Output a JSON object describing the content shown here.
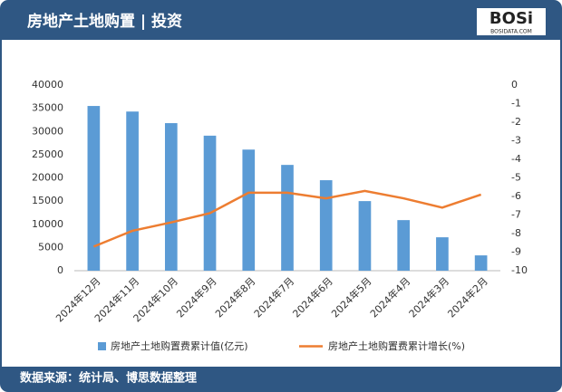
{
  "header": {
    "title": "房地产土地购置 | 投资",
    "logo": "BOSi",
    "logo_sub": "BOSIDATA.COM"
  },
  "footer": {
    "source": "数据来源：统计局、博思数据整理"
  },
  "chart_data": {
    "type": "bar-line",
    "categories": [
      "2024年12月",
      "2024年11月",
      "2024年10月",
      "2024年9月",
      "2024年8月",
      "2024年7月",
      "2024年6月",
      "2024年5月",
      "2024年4月",
      "2024年3月",
      "2024年2月"
    ],
    "series": [
      {
        "name": "房地产土地购置费累计值(亿元)",
        "type": "bar",
        "color": "#5b9bd5",
        "values": [
          35500,
          34300,
          31800,
          29100,
          26100,
          22800,
          19500,
          15000,
          10900,
          7200,
          3300
        ]
      },
      {
        "name": "房地产土地购置费累计增长(%)",
        "type": "line",
        "axis": "y2",
        "color": "#ed7d31",
        "values": [
          -8.7,
          -7.85,
          -7.4,
          -6.9,
          -5.8,
          -5.8,
          -6.1,
          -5.7,
          -6.1,
          -6.6,
          -5.9
        ]
      }
    ],
    "ylim": [
      0,
      40000
    ],
    "yticks": [
      0,
      5000,
      10000,
      15000,
      20000,
      25000,
      30000,
      35000,
      40000
    ],
    "y2lim": [
      -10,
      0
    ],
    "y2ticks": [
      0,
      -1,
      -2,
      -3,
      -4,
      -5,
      -6,
      -7,
      -8,
      -9,
      -10
    ],
    "legend": "bottom"
  }
}
